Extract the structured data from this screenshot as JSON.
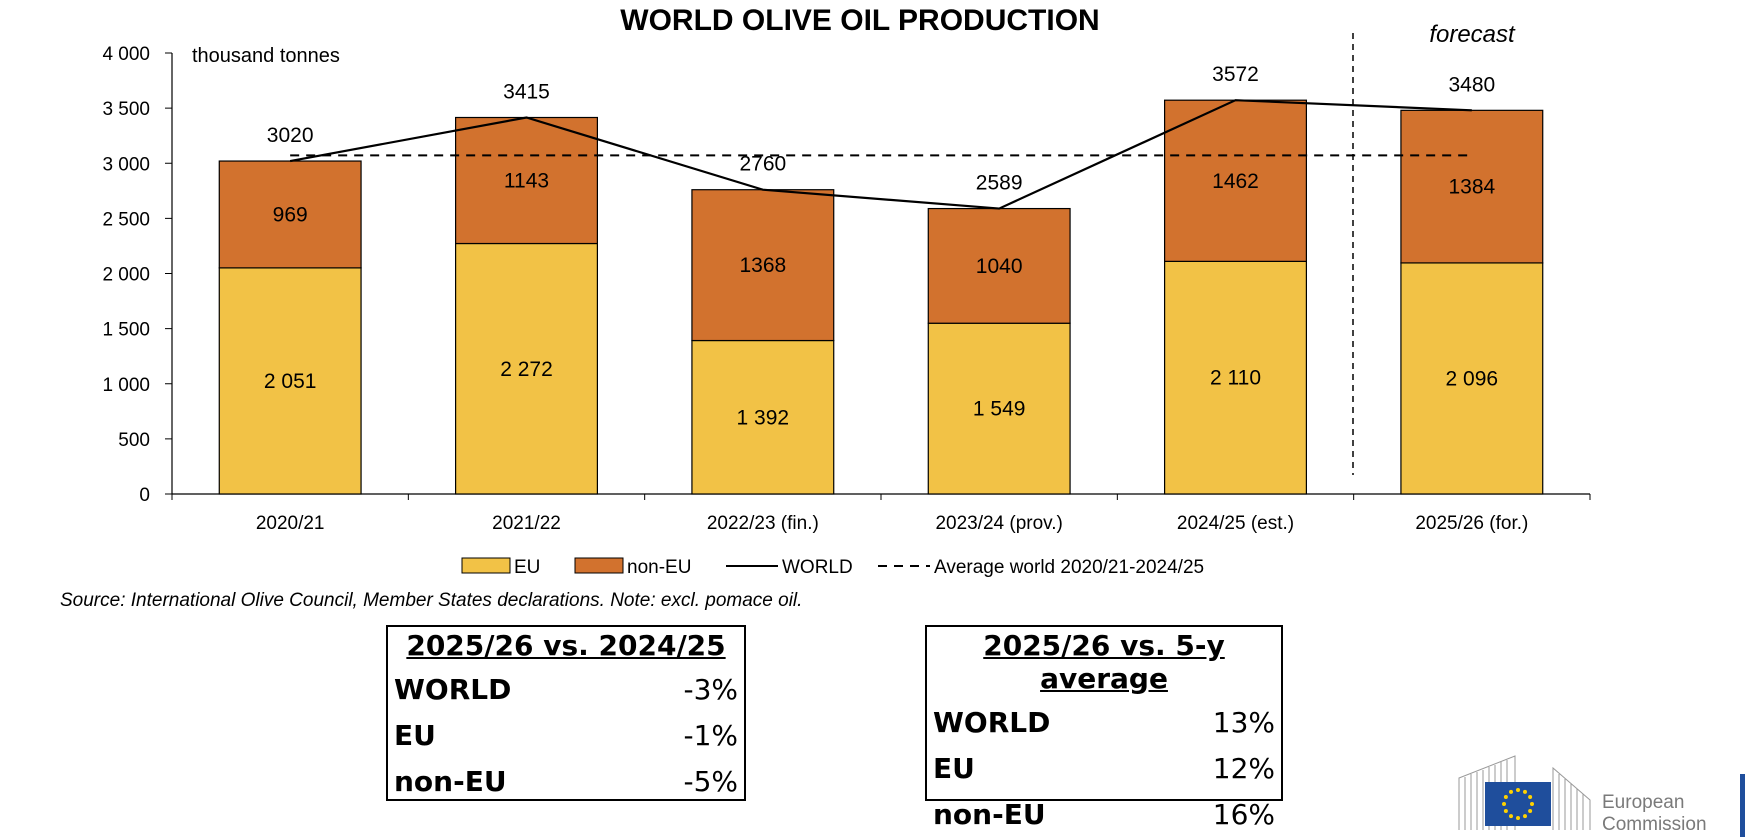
{
  "chart_data": {
    "type": "bar",
    "stacked": true,
    "title": "WORLD OLIVE OIL PRODUCTION",
    "unit_label": "thousand tonnes",
    "forecast_label": "forecast",
    "categories": [
      "2020/21",
      "2021/22",
      "2022/23 (fin.)",
      "2023/24 (prov.)",
      "2024/25 (est.)",
      "2025/26 (for.)"
    ],
    "series": [
      {
        "name": "EU",
        "type": "bar",
        "color": "#F2C246",
        "values": [
          2051,
          2272,
          1392,
          1549,
          2110,
          2096
        ],
        "labels": [
          "2 051",
          "2 272",
          "1 392",
          "1 549",
          "2 110",
          "2 096"
        ]
      },
      {
        "name": "non-EU",
        "type": "bar",
        "color": "#D2722E",
        "values": [
          969,
          1143,
          1368,
          1040,
          1462,
          1384
        ],
        "labels": [
          "969",
          "1143",
          "1368",
          "1040",
          "1462",
          "1384"
        ]
      },
      {
        "name": "WORLD",
        "type": "line",
        "color": "#000000",
        "values": [
          3020,
          3415,
          2760,
          2589,
          3572,
          3480
        ],
        "labels": [
          "3020",
          "3415",
          "2760",
          "2589",
          "3572",
          "3480"
        ]
      },
      {
        "name": "Average world 2020/21-2024/25",
        "type": "line",
        "style": "dashed",
        "color": "#000000",
        "values": [
          3071,
          3071,
          3071,
          3071,
          3071,
          3071
        ]
      }
    ],
    "yticks": [
      "0",
      "500",
      "1 000",
      "1 500",
      "2 000",
      "2 500",
      "3 000",
      "3 500",
      "4 000"
    ],
    "ylim": [
      0,
      4000
    ],
    "grid": false,
    "legend_position": "bottom"
  },
  "source_note": "Source: International Olive Council, Member States declarations. Note: excl. pomace oil.",
  "comparisons": [
    {
      "heading": "2025/26 vs. 2024/25",
      "rows": [
        {
          "label": "WORLD",
          "value": "-3%"
        },
        {
          "label": "EU",
          "value": "-1%"
        },
        {
          "label": "non-EU",
          "value": "-5%"
        }
      ]
    },
    {
      "heading": "2025/26 vs. 5-y average",
      "rows": [
        {
          "label": "WORLD",
          "value": "13%"
        },
        {
          "label": "EU",
          "value": "12%"
        },
        {
          "label": "non-EU",
          "value": "16%"
        }
      ]
    }
  ],
  "logo": {
    "text_line1": "European",
    "text_line2": "Commission",
    "flag_color": "#1F4E9C",
    "star_color": "#FFD200"
  }
}
